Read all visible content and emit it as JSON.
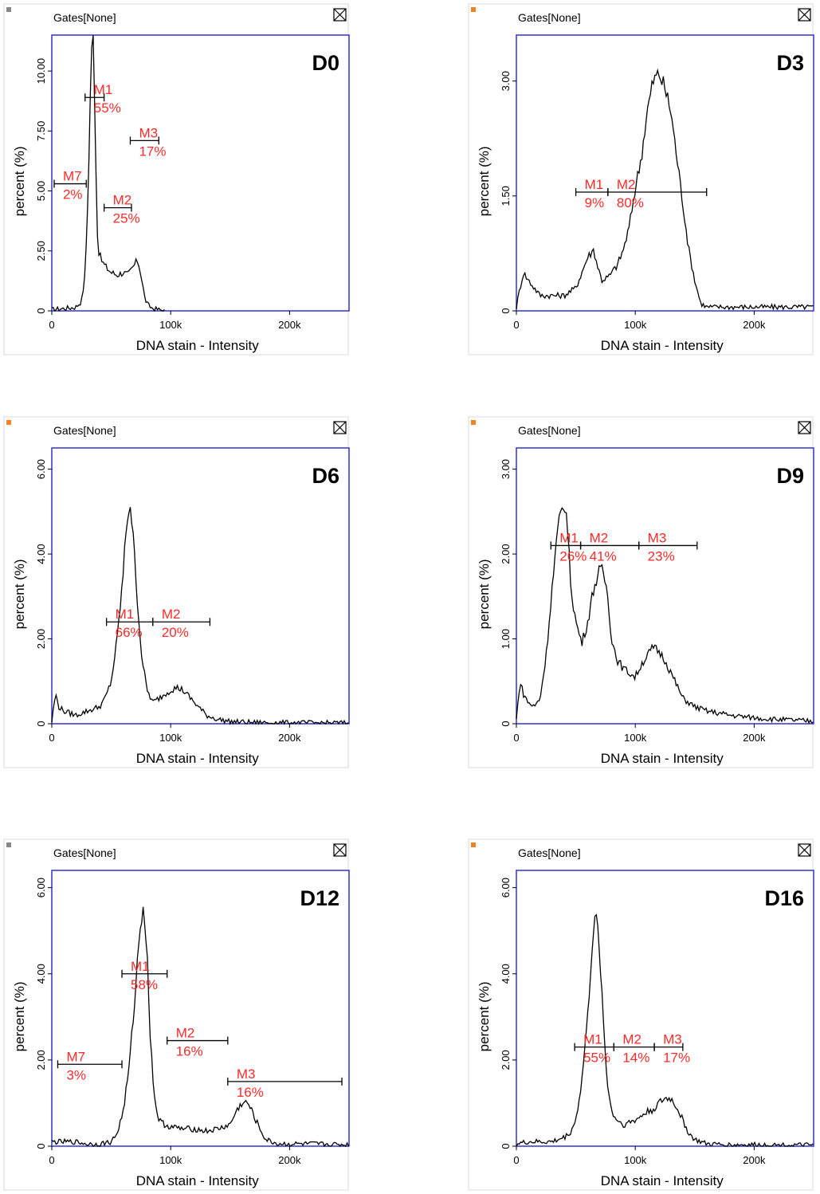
{
  "chart_data": [
    {
      "type": "area",
      "title": "D0",
      "gates_label": "Gates[None]",
      "xlabel": "DNA stain - Intensity",
      "ylabel": "percent (%)",
      "xlim": [
        0,
        250000
      ],
      "ylim": [
        0,
        11.5
      ],
      "xticks": [
        0,
        100000,
        200000
      ],
      "xtick_labels": [
        "0",
        "100k",
        "200k"
      ],
      "yticks": [
        0,
        2.5,
        5,
        7.5,
        10
      ],
      "ytick_labels": [
        "0",
        "2.50",
        "5.00",
        "7.50",
        "10.00"
      ],
      "series": [
        {
          "x": [
            0,
            10000,
            20000,
            25000,
            28000,
            31000,
            33000,
            35000,
            37000,
            38000,
            39000,
            41000,
            43000,
            46000,
            50000,
            55000,
            60000,
            64000,
            68000,
            72000,
            74000,
            76000,
            78000,
            80000,
            82000,
            85000,
            90000,
            95000
          ],
          "y": [
            0.05,
            0.1,
            0.15,
            0.4,
            1.5,
            5.8,
            10.5,
            11.5,
            6.5,
            3.5,
            2.6,
            2.2,
            2.0,
            1.8,
            1.6,
            1.5,
            1.6,
            1.5,
            1.8,
            2.1,
            1.8,
            1.2,
            0.6,
            0.3,
            0.2,
            0.1,
            0.05,
            0
          ]
        }
      ],
      "markers": [
        {
          "name": "M1",
          "percent": "55%",
          "x_range": [
            28000,
            44000
          ],
          "y": 8.9
        },
        {
          "name": "M7",
          "percent": "2%",
          "x_range": [
            2000,
            29000
          ],
          "y": 5.3
        },
        {
          "name": "M2",
          "percent": "25%",
          "x_range": [
            44000,
            67000
          ],
          "y": 4.3
        },
        {
          "name": "M3",
          "percent": "17%",
          "x_range": [
            66000,
            90000
          ],
          "y": 7.1
        }
      ]
    },
    {
      "type": "area",
      "title": "D3",
      "gates_label": "Gates[None]",
      "xlabel": "DNA stain - Intensity",
      "ylabel": "percent (%)",
      "xlim": [
        0,
        250000
      ],
      "ylim": [
        0,
        3.6
      ],
      "xticks": [
        0,
        100000,
        200000
      ],
      "xtick_labels": [
        "0",
        "100k",
        "200k"
      ],
      "yticks": [
        0,
        1.5,
        3.0
      ],
      "ytick_labels": [
        "0",
        "1.50",
        "3.00"
      ],
      "series": [
        {
          "x": [
            0,
            3000,
            6000,
            10000,
            15000,
            20000,
            30000,
            40000,
            50000,
            55000,
            60000,
            65000,
            68000,
            72000,
            78000,
            85000,
            90000,
            95000,
            100000,
            105000,
            110000,
            115000,
            120000,
            125000,
            130000,
            135000,
            140000,
            145000,
            150000,
            155000,
            160000,
            170000,
            190000,
            210000,
            230000,
            250000
          ],
          "y": [
            0.05,
            0.3,
            0.5,
            0.4,
            0.3,
            0.2,
            0.2,
            0.2,
            0.3,
            0.5,
            0.7,
            0.8,
            0.6,
            0.4,
            0.45,
            0.6,
            0.8,
            1.1,
            1.6,
            2.0,
            2.6,
            3.0,
            3.1,
            2.9,
            2.6,
            2.0,
            1.4,
            0.8,
            0.4,
            0.1,
            0.05,
            0.05,
            0.05,
            0.05,
            0.05,
            0.05
          ]
        }
      ],
      "markers": [
        {
          "name": "M1",
          "percent": "9%",
          "x_range": [
            50000,
            77000
          ],
          "y": 1.55
        },
        {
          "name": "M2",
          "percent": "80%",
          "x_range": [
            77000,
            160000
          ],
          "y": 1.55
        }
      ]
    },
    {
      "type": "area",
      "title": "D6",
      "gates_label": "Gates[None]",
      "xlabel": "DNA stain - Intensity",
      "ylabel": "percent (%)",
      "xlim": [
        0,
        250000
      ],
      "ylim": [
        0,
        6.5
      ],
      "xticks": [
        0,
        100000,
        200000
      ],
      "xtick_labels": [
        "0",
        "100k",
        "200k"
      ],
      "yticks": [
        0,
        2,
        4,
        6
      ],
      "ytick_labels": [
        "0",
        "2.00",
        "4.00",
        "6.00"
      ],
      "series": [
        {
          "x": [
            0,
            3000,
            6000,
            10000,
            15000,
            20000,
            30000,
            40000,
            45000,
            50000,
            55000,
            60000,
            63000,
            66000,
            68000,
            70000,
            73000,
            76000,
            80000,
            85000,
            90000,
            95000,
            100000,
            105000,
            110000,
            115000,
            120000,
            125000,
            130000,
            140000,
            150000,
            170000,
            200000,
            230000,
            250000
          ],
          "y": [
            0.05,
            0.7,
            0.4,
            0.3,
            0.25,
            0.2,
            0.3,
            0.4,
            0.6,
            1.0,
            2.0,
            3.5,
            4.8,
            5.2,
            4.5,
            3.8,
            2.5,
            1.5,
            0.8,
            0.5,
            0.6,
            0.7,
            0.8,
            0.85,
            0.8,
            0.65,
            0.5,
            0.35,
            0.2,
            0.1,
            0.05,
            0.03,
            0.02,
            0.02,
            0.02
          ]
        }
      ],
      "markers": [
        {
          "name": "M1",
          "percent": "66%",
          "x_range": [
            46000,
            85000
          ],
          "y": 2.4
        },
        {
          "name": "M2",
          "percent": "20%",
          "x_range": [
            85000,
            133000
          ],
          "y": 2.4
        }
      ]
    },
    {
      "type": "area",
      "title": "D9",
      "gates_label": "Gates[None]",
      "xlabel": "DNA stain - Intensity",
      "ylabel": "percent (%)",
      "xlim": [
        0,
        250000
      ],
      "ylim": [
        0,
        3.25
      ],
      "xticks": [
        0,
        100000,
        200000
      ],
      "xtick_labels": [
        "0",
        "100k",
        "200k"
      ],
      "yticks": [
        0,
        1,
        2,
        3
      ],
      "ytick_labels": [
        "0",
        "1.00",
        "2.00",
        "3.00"
      ],
      "series": [
        {
          "x": [
            0,
            3000,
            6000,
            10000,
            15000,
            20000,
            25000,
            30000,
            35000,
            38000,
            41000,
            43000,
            46000,
            50000,
            55000,
            60000,
            65000,
            70000,
            73000,
            77000,
            80000,
            85000,
            90000,
            95000,
            100000,
            105000,
            110000,
            115000,
            120000,
            125000,
            130000,
            135000,
            140000,
            150000,
            160000,
            180000,
            200000,
            220000,
            250000
          ],
          "y": [
            0.05,
            0.5,
            0.35,
            0.25,
            0.2,
            0.3,
            0.8,
            1.6,
            2.3,
            2.5,
            2.6,
            2.3,
            1.6,
            1.2,
            0.95,
            1.2,
            1.6,
            1.8,
            1.8,
            1.5,
            1.0,
            0.75,
            0.65,
            0.6,
            0.55,
            0.7,
            0.8,
            0.9,
            0.85,
            0.75,
            0.6,
            0.45,
            0.3,
            0.2,
            0.15,
            0.1,
            0.07,
            0.05,
            0.03
          ]
        }
      ],
      "markers": [
        {
          "name": "M1",
          "percent": "26%",
          "x_range": [
            29000,
            54000
          ],
          "y": 2.1
        },
        {
          "name": "M2",
          "percent": "41%",
          "x_range": [
            54000,
            103000
          ],
          "y": 2.1
        },
        {
          "name": "M3",
          "percent": "23%",
          "x_range": [
            103000,
            152000
          ],
          "y": 2.1
        }
      ]
    },
    {
      "type": "area",
      "title": "D12",
      "gates_label": "Gates[None]",
      "xlabel": "DNA stain - Intensity",
      "ylabel": "percent (%)",
      "xlim": [
        0,
        250000
      ],
      "ylim": [
        0,
        6.4
      ],
      "xticks": [
        0,
        100000,
        200000
      ],
      "xtick_labels": [
        "0",
        "100k",
        "200k"
      ],
      "yticks": [
        0,
        2,
        4,
        6
      ],
      "ytick_labels": [
        "0",
        "2.00",
        "4.00",
        "6.00"
      ],
      "series": [
        {
          "x": [
            0,
            10000,
            20000,
            30000,
            40000,
            50000,
            55000,
            60000,
            65000,
            70000,
            74000,
            77000,
            80000,
            83000,
            86000,
            90000,
            95000,
            100000,
            110000,
            120000,
            130000,
            140000,
            150000,
            155000,
            160000,
            165000,
            170000,
            175000,
            180000,
            190000,
            200000,
            220000,
            250000
          ],
          "y": [
            0.1,
            0.1,
            0.1,
            0.05,
            0.05,
            0.1,
            0.3,
            0.8,
            1.8,
            3.5,
            5.0,
            5.7,
            4.5,
            2.5,
            1.2,
            0.6,
            0.5,
            0.45,
            0.4,
            0.4,
            0.35,
            0.4,
            0.5,
            0.8,
            1.0,
            1.0,
            0.7,
            0.4,
            0.15,
            0.05,
            0.05,
            0.05,
            0.03
          ]
        }
      ],
      "markers": [
        {
          "name": "M1",
          "percent": "58%",
          "x_range": [
            59000,
            97000
          ],
          "y": 4.0
        },
        {
          "name": "M7",
          "percent": "3%",
          "x_range": [
            5000,
            59000
          ],
          "y": 1.9
        },
        {
          "name": "M2",
          "percent": "16%",
          "x_range": [
            97000,
            148000
          ],
          "y": 2.45
        },
        {
          "name": "M3",
          "percent": "16%",
          "x_range": [
            148000,
            244000
          ],
          "y": 1.5
        }
      ]
    },
    {
      "type": "area",
      "title": "D16",
      "gates_label": "Gates[None]",
      "xlabel": "DNA stain - Intensity",
      "ylabel": "percent (%)",
      "xlim": [
        0,
        250000
      ],
      "ylim": [
        0,
        6.4
      ],
      "xticks": [
        0,
        100000,
        200000
      ],
      "xtick_labels": [
        "0",
        "100k",
        "200k"
      ],
      "yticks": [
        0,
        2,
        4,
        6
      ],
      "ytick_labels": [
        "0",
        "2.00",
        "4.00",
        "6.00"
      ],
      "series": [
        {
          "x": [
            0,
            10000,
            20000,
            30000,
            40000,
            45000,
            50000,
            55000,
            60000,
            64000,
            67000,
            70000,
            73000,
            76000,
            80000,
            85000,
            90000,
            95000,
            100000,
            105000,
            110000,
            115000,
            120000,
            125000,
            130000,
            135000,
            140000,
            145000,
            150000,
            160000,
            180000,
            200000,
            250000
          ],
          "y": [
            0.05,
            0.1,
            0.1,
            0.1,
            0.2,
            0.3,
            0.6,
            1.5,
            3.0,
            4.8,
            5.3,
            4.6,
            3.0,
            1.6,
            0.8,
            0.6,
            0.5,
            0.55,
            0.6,
            0.7,
            0.8,
            0.85,
            1.0,
            1.1,
            1.1,
            0.9,
            0.6,
            0.3,
            0.15,
            0.05,
            0.03,
            0.03,
            0.02
          ]
        }
      ],
      "markers": [
        {
          "name": "M1",
          "percent": "55%",
          "x_range": [
            49000,
            82000
          ],
          "y": 2.3
        },
        {
          "name": "M2",
          "percent": "14%",
          "x_range": [
            82000,
            116000
          ],
          "y": 2.3
        },
        {
          "name": "M3",
          "percent": "17%",
          "x_range": [
            116000,
            140000
          ],
          "y": 2.3
        }
      ]
    }
  ]
}
